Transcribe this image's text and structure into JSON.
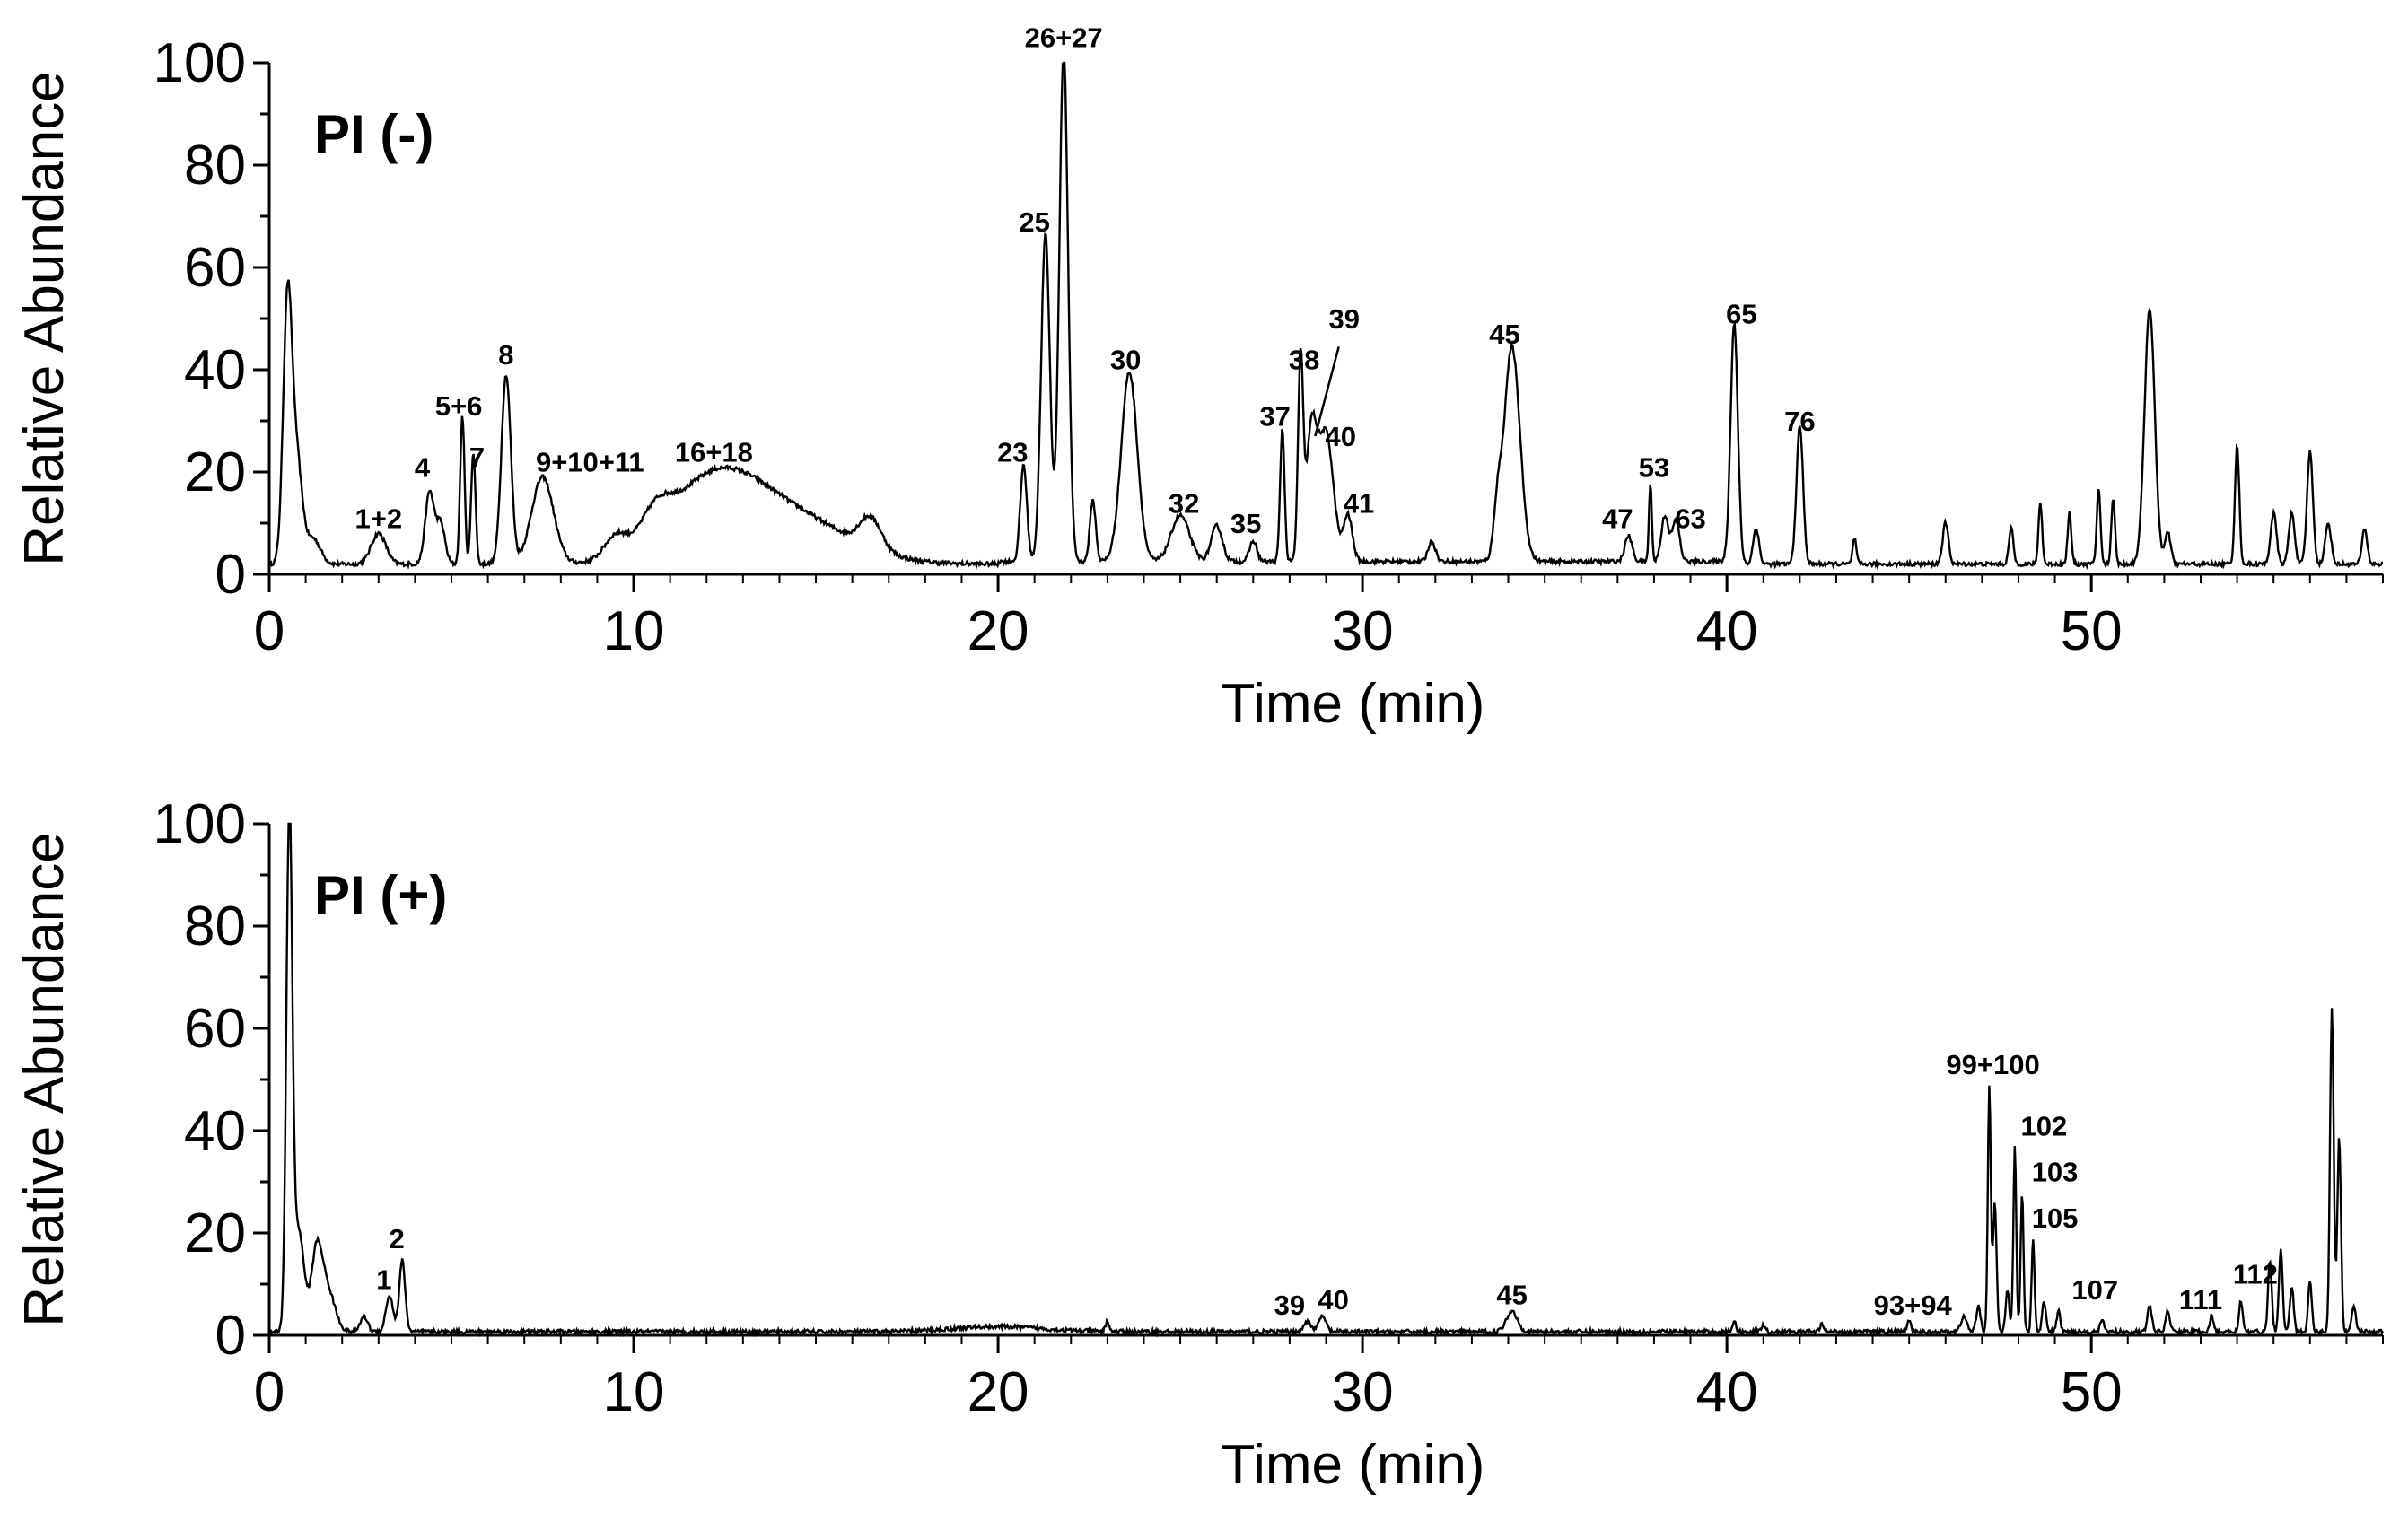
{
  "chart_data": [
    {
      "type": "line",
      "title": "PI (-)",
      "xlabel": "Time (min)",
      "ylabel": "Relative Abundance",
      "xlim": [
        0,
        58
      ],
      "ylim": [
        0,
        100
      ],
      "x_ticks": [
        0,
        10,
        20,
        30,
        40,
        50
      ],
      "y_ticks": [
        0,
        20,
        40,
        60,
        80,
        100
      ],
      "baseline": 2,
      "peaks": [
        {
          "x": 0.5,
          "y": 50,
          "w": 0.12
        },
        {
          "x": 0.75,
          "y": 20,
          "w": 0.15
        },
        {
          "x": 1.2,
          "y": 5,
          "w": 0.2
        },
        {
          "x": 3.0,
          "y": 6,
          "w": 0.2
        },
        {
          "x": 4.4,
          "y": 14,
          "w": 0.12
        },
        {
          "x": 4.7,
          "y": 8,
          "w": 0.12
        },
        {
          "x": 5.3,
          "y": 29,
          "w": 0.06
        },
        {
          "x": 5.6,
          "y": 22,
          "w": 0.06
        },
        {
          "x": 6.5,
          "y": 37,
          "w": 0.13
        },
        {
          "x": 7.5,
          "y": 17,
          "w": 0.3
        },
        {
          "x": 9.5,
          "y": 4,
          "w": 0.3
        },
        {
          "x": 10.6,
          "y": 5,
          "w": 0.4
        },
        {
          "x": 12.2,
          "y": 16,
          "w": 1.3
        },
        {
          "x": 14.5,
          "y": 8,
          "w": 1.5
        },
        {
          "x": 16.5,
          "y": 6,
          "w": 0.3
        },
        {
          "x": 20.7,
          "y": 19,
          "w": 0.09
        },
        {
          "x": 21.3,
          "y": 64,
          "w": 0.12
        },
        {
          "x": 21.8,
          "y": 100,
          "w": 0.12
        },
        {
          "x": 22.6,
          "y": 12,
          "w": 0.08
        },
        {
          "x": 23.6,
          "y": 37,
          "w": 0.22
        },
        {
          "x": 25.0,
          "y": 9,
          "w": 0.25
        },
        {
          "x": 26.0,
          "y": 7,
          "w": 0.15
        },
        {
          "x": 27.0,
          "y": 4,
          "w": 0.1
        },
        {
          "x": 27.8,
          "y": 26,
          "w": 0.06
        },
        {
          "x": 28.3,
          "y": 38,
          "w": 0.07
        },
        {
          "x": 28.6,
          "y": 25,
          "w": 0.15
        },
        {
          "x": 29.0,
          "y": 25,
          "w": 0.2
        },
        {
          "x": 29.6,
          "y": 9,
          "w": 0.12
        },
        {
          "x": 31.9,
          "y": 4,
          "w": 0.1
        },
        {
          "x": 33.7,
          "y": 8,
          "w": 0.1
        },
        {
          "x": 34.1,
          "y": 42,
          "w": 0.22
        },
        {
          "x": 37.3,
          "y": 5,
          "w": 0.1
        },
        {
          "x": 37.9,
          "y": 15,
          "w": 0.04
        },
        {
          "x": 38.3,
          "y": 9,
          "w": 0.1
        },
        {
          "x": 38.6,
          "y": 8,
          "w": 0.1
        },
        {
          "x": 40.2,
          "y": 47,
          "w": 0.1
        },
        {
          "x": 40.8,
          "y": 7,
          "w": 0.08
        },
        {
          "x": 42.0,
          "y": 27,
          "w": 0.09
        },
        {
          "x": 43.5,
          "y": 5,
          "w": 0.05
        },
        {
          "x": 46.0,
          "y": 8,
          "w": 0.08
        },
        {
          "x": 47.8,
          "y": 7,
          "w": 0.06
        },
        {
          "x": 48.6,
          "y": 12,
          "w": 0.05
        },
        {
          "x": 49.4,
          "y": 10,
          "w": 0.05
        },
        {
          "x": 50.2,
          "y": 15,
          "w": 0.05
        },
        {
          "x": 50.6,
          "y": 13,
          "w": 0.05
        },
        {
          "x": 51.6,
          "y": 50,
          "w": 0.14
        },
        {
          "x": 52.1,
          "y": 6,
          "w": 0.08
        },
        {
          "x": 54.0,
          "y": 23,
          "w": 0.06
        },
        {
          "x": 55.0,
          "y": 10,
          "w": 0.08
        },
        {
          "x": 55.5,
          "y": 10,
          "w": 0.08
        },
        {
          "x": 56.0,
          "y": 22,
          "w": 0.08
        },
        {
          "x": 56.5,
          "y": 8,
          "w": 0.08
        },
        {
          "x": 57.5,
          "y": 7,
          "w": 0.07
        }
      ],
      "labels": [
        {
          "text": "1+2",
          "x": 3.0,
          "y": 8
        },
        {
          "text": "4",
          "x": 4.2,
          "y": 18
        },
        {
          "text": "5+6",
          "x": 5.2,
          "y": 30
        },
        {
          "text": "7",
          "x": 5.7,
          "y": 20
        },
        {
          "text": "8",
          "x": 6.5,
          "y": 40
        },
        {
          "text": "9+10+11",
          "x": 8.8,
          "y": 19
        },
        {
          "text": "16+18",
          "x": 12.2,
          "y": 21
        },
        {
          "text": "23",
          "x": 20.4,
          "y": 21
        },
        {
          "text": "25",
          "x": 21.0,
          "y": 66
        },
        {
          "text": "26+27",
          "x": 21.8,
          "y": 102
        },
        {
          "text": "30",
          "x": 23.5,
          "y": 39
        },
        {
          "text": "32",
          "x": 25.1,
          "y": 11
        },
        {
          "text": "35",
          "x": 26.8,
          "y": 7
        },
        {
          "text": "37",
          "x": 27.6,
          "y": 28
        },
        {
          "text": "38",
          "x": 28.4,
          "y": 39
        },
        {
          "text": "39",
          "x": 29.5,
          "y": 47
        },
        {
          "text": "40",
          "x": 29.4,
          "y": 24
        },
        {
          "text": "41",
          "x": 29.9,
          "y": 11
        },
        {
          "text": "45",
          "x": 33.9,
          "y": 44
        },
        {
          "text": "47",
          "x": 37.0,
          "y": 8
        },
        {
          "text": "53",
          "x": 38.0,
          "y": 18
        },
        {
          "text": "63",
          "x": 39.0,
          "y": 8
        },
        {
          "text": "65",
          "x": 40.4,
          "y": 48
        },
        {
          "text": "76",
          "x": 42.0,
          "y": 27
        }
      ]
    },
    {
      "type": "line",
      "title": "PI (+)",
      "xlabel": "Time (min)",
      "ylabel": "Relative Abundance",
      "xlim": [
        0,
        58
      ],
      "ylim": [
        0,
        100
      ],
      "x_ticks": [
        0,
        10,
        20,
        30,
        40,
        50
      ],
      "y_ticks": [
        0,
        20,
        40,
        60,
        80,
        100
      ],
      "baseline": 0.7,
      "peaks": [
        {
          "x": 0.55,
          "y": 100,
          "w": 0.08
        },
        {
          "x": 0.8,
          "y": 20,
          "w": 0.15
        },
        {
          "x": 1.3,
          "y": 15,
          "w": 0.15
        },
        {
          "x": 1.6,
          "y": 8,
          "w": 0.2
        },
        {
          "x": 2.6,
          "y": 3,
          "w": 0.1
        },
        {
          "x": 3.3,
          "y": 7,
          "w": 0.1
        },
        {
          "x": 3.65,
          "y": 14,
          "w": 0.08
        },
        {
          "x": 20.0,
          "y": 1,
          "w": 1.2
        },
        {
          "x": 23.0,
          "y": 2,
          "w": 0.05
        },
        {
          "x": 28.5,
          "y": 2,
          "w": 0.1
        },
        {
          "x": 28.9,
          "y": 3,
          "w": 0.1
        },
        {
          "x": 34.1,
          "y": 4,
          "w": 0.15
        },
        {
          "x": 40.2,
          "y": 2,
          "w": 0.05
        },
        {
          "x": 41.0,
          "y": 1.5,
          "w": 0.05
        },
        {
          "x": 42.6,
          "y": 1.5,
          "w": 0.05
        },
        {
          "x": 45.0,
          "y": 2,
          "w": 0.05
        },
        {
          "x": 46.5,
          "y": 3,
          "w": 0.08
        },
        {
          "x": 46.9,
          "y": 5,
          "w": 0.06
        },
        {
          "x": 47.2,
          "y": 48,
          "w": 0.04
        },
        {
          "x": 47.35,
          "y": 25,
          "w": 0.05
        },
        {
          "x": 47.7,
          "y": 8,
          "w": 0.05
        },
        {
          "x": 47.9,
          "y": 36,
          "w": 0.04
        },
        {
          "x": 48.1,
          "y": 27,
          "w": 0.04
        },
        {
          "x": 48.4,
          "y": 18,
          "w": 0.04
        },
        {
          "x": 48.7,
          "y": 6,
          "w": 0.05
        },
        {
          "x": 49.1,
          "y": 4,
          "w": 0.05
        },
        {
          "x": 50.3,
          "y": 2,
          "w": 0.06
        },
        {
          "x": 51.6,
          "y": 5,
          "w": 0.06
        },
        {
          "x": 52.1,
          "y": 4,
          "w": 0.06
        },
        {
          "x": 53.3,
          "y": 3,
          "w": 0.05
        },
        {
          "x": 54.1,
          "y": 6,
          "w": 0.05
        },
        {
          "x": 54.9,
          "y": 14,
          "w": 0.05
        },
        {
          "x": 55.2,
          "y": 16,
          "w": 0.05
        },
        {
          "x": 55.5,
          "y": 9,
          "w": 0.05
        },
        {
          "x": 56.0,
          "y": 10,
          "w": 0.05
        },
        {
          "x": 56.6,
          "y": 63,
          "w": 0.05
        },
        {
          "x": 56.8,
          "y": 38,
          "w": 0.05
        },
        {
          "x": 57.2,
          "y": 5,
          "w": 0.06
        }
      ],
      "labels": [
        {
          "text": "1",
          "x": 3.15,
          "y": 8
        },
        {
          "text": "2",
          "x": 3.5,
          "y": 16
        },
        {
          "text": "39",
          "x": 28.0,
          "y": 3
        },
        {
          "text": "40",
          "x": 29.2,
          "y": 4
        },
        {
          "text": "45",
          "x": 34.1,
          "y": 5
        },
        {
          "text": "93+94",
          "x": 45.1,
          "y": 3
        },
        {
          "text": "99+100",
          "x": 47.3,
          "y": 50
        },
        {
          "text": "102",
          "x": 48.7,
          "y": 38
        },
        {
          "text": "103",
          "x": 49.0,
          "y": 29
        },
        {
          "text": "105",
          "x": 49.0,
          "y": 20
        },
        {
          "text": "107",
          "x": 50.1,
          "y": 6
        },
        {
          "text": "111",
          "x": 53.0,
          "y": 4
        },
        {
          "text": "112",
          "x": 54.5,
          "y": 9
        }
      ]
    }
  ]
}
